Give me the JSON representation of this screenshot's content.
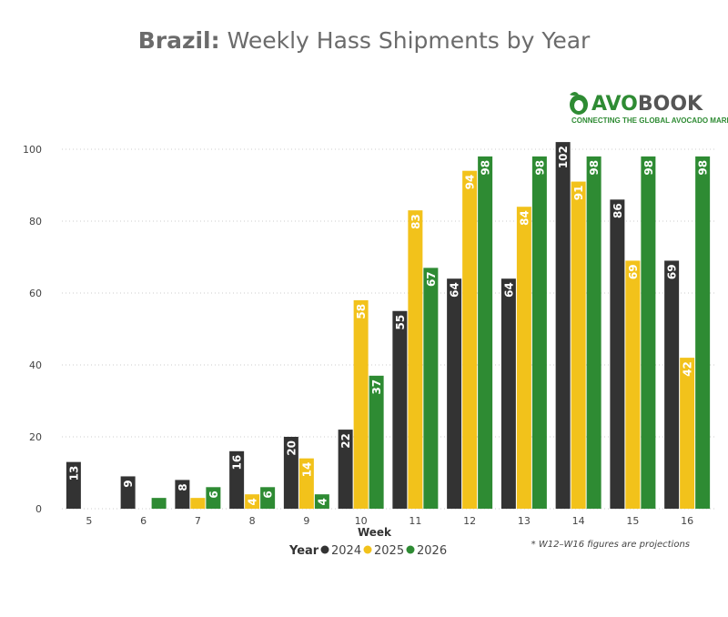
{
  "title": {
    "bold": "Brazil:",
    "rest": " Weekly Hass Shipments by Year"
  },
  "logo": {
    "avo": "AVO",
    "book": "BOOK",
    "tagline": "CONNECTING THE GLOBAL AVOCADO MARKET"
  },
  "footnote": "* W12–W16 figures are projections",
  "colors": {
    "2024": "#333333",
    "2025": "#F2C21B",
    "2026": "#2E8B33"
  },
  "chart_data": {
    "type": "bar",
    "title": "Brazil: Weekly Hass Shipments by Year",
    "xlabel": "Week",
    "ylabel": "",
    "ylim": [
      0,
      100
    ],
    "yticks": [
      0,
      20,
      40,
      60,
      80,
      100
    ],
    "categories": [
      "5",
      "6",
      "7",
      "8",
      "9",
      "10",
      "11",
      "12",
      "13",
      "14",
      "15",
      "16"
    ],
    "legend": {
      "title": "Year",
      "placement": "bottom"
    },
    "series": [
      {
        "name": "2024",
        "values": [
          13,
          9,
          8,
          16,
          20,
          22,
          55,
          64,
          64,
          102,
          86,
          69
        ],
        "labels": [
          "13",
          "9",
          "8",
          "16",
          "20",
          "22",
          "55",
          "64",
          "64",
          "102",
          "86",
          "69"
        ]
      },
      {
        "name": "2025",
        "values": [
          null,
          null,
          3,
          4,
          14,
          58,
          83,
          94,
          84,
          91,
          69,
          42
        ],
        "labels": [
          null,
          null,
          null,
          "4",
          "14",
          "58",
          "83",
          "94",
          "84",
          "91",
          "69",
          "42"
        ]
      },
      {
        "name": "2026",
        "values": [
          null,
          3,
          6,
          6,
          4,
          37,
          67,
          98,
          98,
          98,
          98,
          98
        ],
        "labels": [
          null,
          null,
          "6",
          "6",
          "4",
          "37",
          "67",
          "98",
          "98",
          "98",
          "98",
          "98"
        ]
      }
    ]
  }
}
